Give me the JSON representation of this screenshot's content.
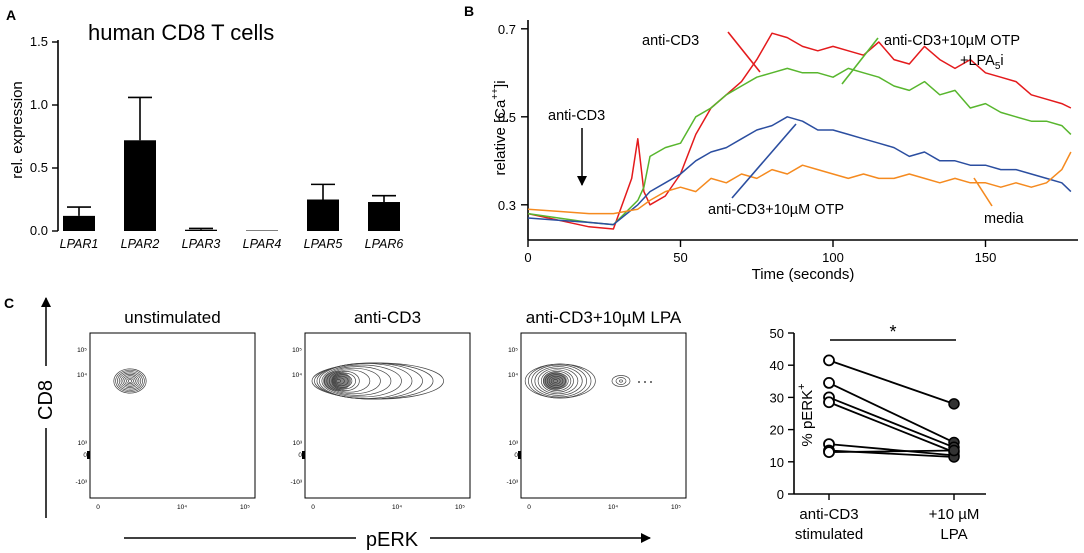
{
  "colors": {
    "red": "#e41a1c",
    "green": "#58b62e",
    "blue": "#2b4ea0",
    "orange": "#f58a1f",
    "black": "#111111"
  },
  "panel_labels": {
    "a": "A",
    "b": "B",
    "c": "C"
  },
  "chart_data": [
    {
      "id": "A",
      "type": "bar",
      "title": "human CD8 T cells",
      "ylabel": "rel. expression",
      "xlabel": "",
      "ylim": [
        0,
        1.5
      ],
      "yticks": [
        "0.0",
        "0.5",
        "1.0",
        "1.5"
      ],
      "categories": [
        "LPAR1",
        "LPAR2",
        "LPAR3",
        "LPAR4",
        "LPAR5",
        "LPAR6"
      ],
      "values": [
        0.12,
        0.72,
        0.01,
        0.0,
        0.25,
        0.23
      ],
      "errors": [
        0.07,
        0.34,
        0.01,
        0.0,
        0.12,
        0.05
      ]
    },
    {
      "id": "B",
      "type": "line",
      "xlabel": "Time (seconds)",
      "ylabel": "relative [Ca++]i",
      "ylabel_parts": [
        "relative [Ca",
        "++",
        "]i"
      ],
      "xlim": [
        0,
        180
      ],
      "ylim": [
        0.22,
        0.72
      ],
      "xticks": [
        "0",
        "50",
        "100",
        "150"
      ],
      "yticks": [
        "0.3",
        "0.5",
        "0.7"
      ],
      "arrow_label": "anti-CD3",
      "series": [
        {
          "name": "anti-CD3",
          "color": "red",
          "x": [
            0,
            10,
            20,
            28,
            34,
            36,
            38,
            40,
            45,
            50,
            55,
            60,
            65,
            70,
            75,
            80,
            85,
            90,
            95,
            100,
            105,
            110,
            115,
            120,
            125,
            130,
            135,
            140,
            145,
            150,
            155,
            160,
            165,
            170,
            175,
            178
          ],
          "y": [
            0.28,
            0.265,
            0.25,
            0.245,
            0.36,
            0.45,
            0.33,
            0.3,
            0.32,
            0.37,
            0.46,
            0.52,
            0.55,
            0.58,
            0.63,
            0.69,
            0.68,
            0.66,
            0.65,
            0.66,
            0.65,
            0.64,
            0.67,
            0.63,
            0.62,
            0.66,
            0.63,
            0.61,
            0.63,
            0.6,
            0.59,
            0.58,
            0.55,
            0.54,
            0.53,
            0.52
          ]
        },
        {
          "name": "anti-CD3+10µM OTP+LPA5i",
          "label_lines": [
            "anti-CD3+10µM OTP",
            "+LPA",
            "5",
            "i"
          ],
          "color": "green",
          "x": [
            0,
            10,
            20,
            28,
            36,
            38,
            40,
            45,
            50,
            55,
            60,
            65,
            70,
            75,
            80,
            85,
            90,
            95,
            100,
            105,
            110,
            115,
            120,
            125,
            130,
            135,
            140,
            145,
            150,
            155,
            160,
            165,
            170,
            175,
            178
          ],
          "y": [
            0.28,
            0.27,
            0.26,
            0.255,
            0.31,
            0.34,
            0.41,
            0.43,
            0.44,
            0.5,
            0.52,
            0.55,
            0.57,
            0.59,
            0.6,
            0.61,
            0.6,
            0.6,
            0.59,
            0.61,
            0.6,
            0.59,
            0.57,
            0.56,
            0.58,
            0.55,
            0.56,
            0.52,
            0.53,
            0.51,
            0.5,
            0.49,
            0.49,
            0.48,
            0.46
          ]
        },
        {
          "name": "anti-CD3+10µM OTP",
          "color": "blue",
          "x": [
            0,
            10,
            20,
            28,
            36,
            40,
            45,
            50,
            55,
            60,
            65,
            70,
            75,
            80,
            85,
            90,
            95,
            100,
            105,
            110,
            115,
            120,
            125,
            130,
            135,
            140,
            145,
            150,
            155,
            160,
            165,
            170,
            175,
            178
          ],
          "y": [
            0.27,
            0.265,
            0.26,
            0.255,
            0.3,
            0.33,
            0.35,
            0.37,
            0.4,
            0.42,
            0.43,
            0.45,
            0.47,
            0.48,
            0.5,
            0.49,
            0.47,
            0.47,
            0.46,
            0.45,
            0.44,
            0.43,
            0.41,
            0.42,
            0.4,
            0.4,
            0.39,
            0.39,
            0.38,
            0.38,
            0.37,
            0.36,
            0.35,
            0.33
          ]
        },
        {
          "name": "media",
          "color": "orange",
          "x": [
            0,
            10,
            20,
            28,
            36,
            40,
            45,
            50,
            55,
            60,
            65,
            70,
            75,
            80,
            85,
            90,
            95,
            100,
            105,
            110,
            115,
            120,
            125,
            130,
            135,
            140,
            145,
            150,
            155,
            160,
            165,
            170,
            175,
            178
          ],
          "y": [
            0.29,
            0.285,
            0.28,
            0.28,
            0.29,
            0.31,
            0.33,
            0.34,
            0.33,
            0.36,
            0.35,
            0.37,
            0.36,
            0.38,
            0.37,
            0.39,
            0.38,
            0.37,
            0.36,
            0.37,
            0.36,
            0.36,
            0.37,
            0.36,
            0.35,
            0.36,
            0.35,
            0.35,
            0.34,
            0.35,
            0.34,
            0.35,
            0.38,
            0.42
          ]
        }
      ]
    },
    {
      "id": "C-right",
      "type": "scatter",
      "ylabel": "% pERK+",
      "ylabel_parts": [
        "% pERK",
        "+"
      ],
      "ylim": [
        0,
        50
      ],
      "yticks": [
        "0",
        "10",
        "20",
        "30",
        "40",
        "50"
      ],
      "categories": [
        "anti-CD3 stimulated",
        "+10 µM LPA"
      ],
      "category_lines": [
        [
          "anti-CD3",
          "stimulated"
        ],
        [
          "+10 µM",
          "LPA"
        ]
      ],
      "significance": "*",
      "pairs": [
        [
          41.5,
          28.0
        ],
        [
          34.5,
          16.0
        ],
        [
          30.0,
          14.5
        ],
        [
          28.5,
          13.0
        ],
        [
          15.5,
          12.0
        ],
        [
          13.5,
          11.5
        ],
        [
          13.0,
          13.5
        ]
      ]
    }
  ],
  "flow": {
    "ylabel": "CD8",
    "xlabel": "pERK",
    "plots": [
      {
        "title": "unstimulated"
      },
      {
        "title": "anti-CD3"
      },
      {
        "title": "anti-CD3+10µM LPA"
      }
    ],
    "y_ticks": [
      "10⁵",
      "10⁴",
      "10³",
      "0",
      "-10³"
    ],
    "x_ticks": [
      "0",
      "10⁴",
      "10⁵"
    ]
  }
}
